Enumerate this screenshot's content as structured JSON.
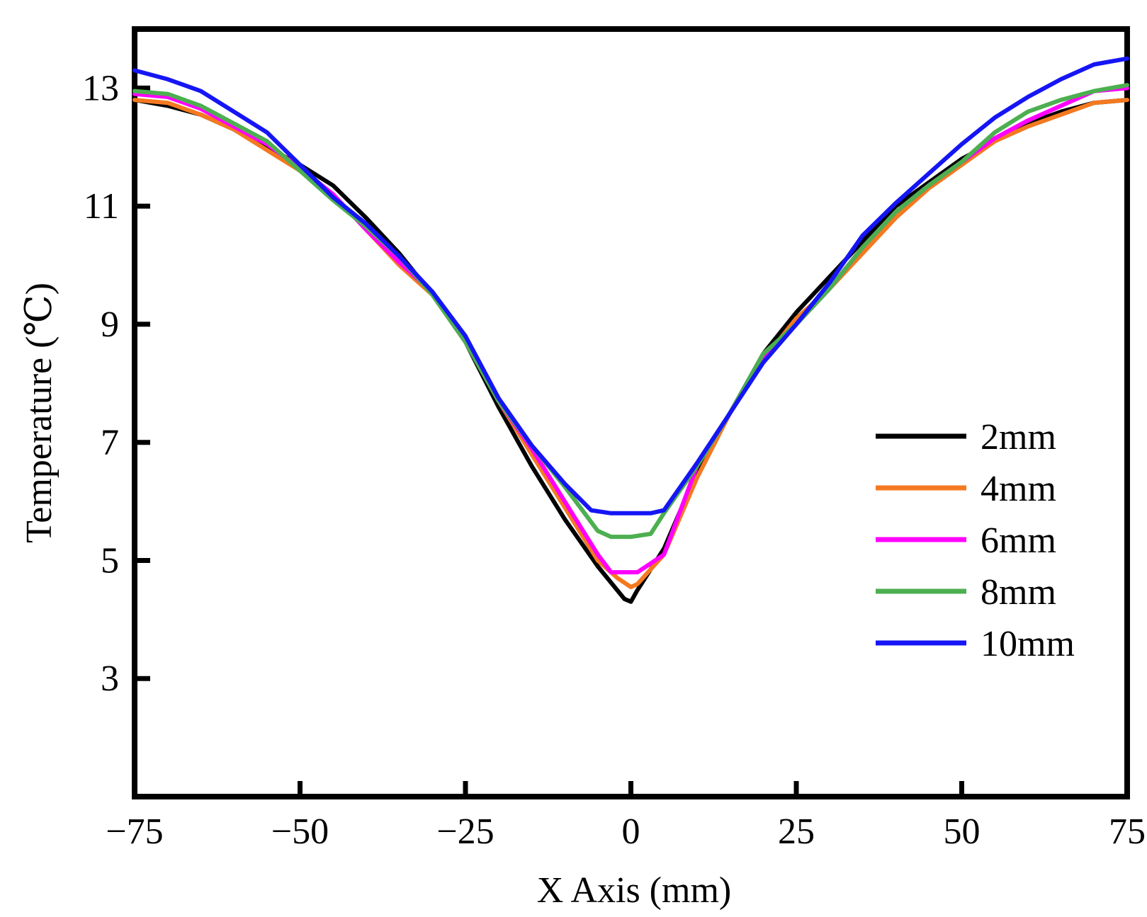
{
  "chart_data": {
    "type": "line",
    "title": "",
    "xlabel": "X Axis (mm)",
    "ylabel": "Temperature (℃)",
    "xlim": [
      -75,
      75
    ],
    "ylim": [
      1,
      14
    ],
    "xticks": [
      -75,
      -50,
      -25,
      0,
      25,
      50,
      75
    ],
    "xtick_labels": [
      "−75",
      "−50",
      "−25",
      "0",
      "25",
      "50",
      "75"
    ],
    "yticks": [
      3,
      5,
      7,
      9,
      11,
      13
    ],
    "ytick_labels": [
      "3",
      "5",
      "7",
      "9",
      "11",
      "13"
    ],
    "grid": false,
    "legend_position": "right",
    "series": [
      {
        "name": "2mm",
        "color": "#000000",
        "x": [
          -75,
          -70,
          -65,
          -60,
          -55,
          -50,
          -45,
          -40,
          -35,
          -30,
          -25,
          -20,
          -15,
          -10,
          -5,
          -1,
          0,
          1,
          5,
          10,
          15,
          20,
          25,
          30,
          35,
          40,
          45,
          50,
          55,
          60,
          65,
          70,
          75
        ],
        "values": [
          12.8,
          12.7,
          12.55,
          12.3,
          12.0,
          11.7,
          11.35,
          10.8,
          10.2,
          9.5,
          8.7,
          7.6,
          6.6,
          5.7,
          4.9,
          4.35,
          4.3,
          4.5,
          5.2,
          6.5,
          7.5,
          8.5,
          9.2,
          9.8,
          10.4,
          11.0,
          11.4,
          11.8,
          12.1,
          12.4,
          12.6,
          12.75,
          12.8
        ]
      },
      {
        "name": "4mm",
        "color": "#f47920",
        "x": [
          -75,
          -70,
          -65,
          -60,
          -55,
          -50,
          -45,
          -40,
          -35,
          -30,
          -25,
          -20,
          -15,
          -10,
          -5,
          -2,
          0,
          1,
          5,
          10,
          15,
          20,
          25,
          30,
          35,
          40,
          45,
          50,
          55,
          60,
          65,
          70,
          75
        ],
        "values": [
          12.8,
          12.75,
          12.55,
          12.3,
          11.95,
          11.6,
          11.2,
          10.6,
          10.0,
          9.5,
          8.7,
          7.7,
          6.8,
          5.9,
          5.0,
          4.7,
          4.55,
          4.6,
          5.1,
          6.4,
          7.5,
          8.4,
          9.1,
          9.6,
          10.2,
          10.8,
          11.3,
          11.7,
          12.1,
          12.35,
          12.55,
          12.75,
          12.8
        ]
      },
      {
        "name": "6mm",
        "color": "#ff00ff",
        "x": [
          -75,
          -70,
          -65,
          -60,
          -55,
          -50,
          -45,
          -40,
          -35,
          -30,
          -25,
          -20,
          -15,
          -10,
          -5,
          -3,
          0,
          1,
          5,
          10,
          15,
          20,
          25,
          30,
          35,
          40,
          45,
          50,
          55,
          60,
          65,
          70,
          75
        ],
        "values": [
          12.9,
          12.85,
          12.65,
          12.35,
          12.05,
          11.65,
          11.2,
          10.6,
          10.05,
          9.55,
          8.75,
          7.7,
          6.9,
          6.0,
          5.1,
          4.8,
          4.8,
          4.8,
          5.1,
          6.6,
          7.5,
          8.4,
          9.0,
          9.6,
          10.3,
          10.9,
          11.35,
          11.75,
          12.15,
          12.45,
          12.7,
          12.95,
          13.0
        ]
      },
      {
        "name": "8mm",
        "color": "#4caf50",
        "x": [
          -75,
          -70,
          -65,
          -60,
          -55,
          -50,
          -45,
          -40,
          -35,
          -30,
          -25,
          -20,
          -15,
          -10,
          -5,
          -3,
          0,
          3,
          5,
          10,
          15,
          20,
          25,
          30,
          35,
          40,
          45,
          50,
          55,
          60,
          65,
          70,
          75
        ],
        "values": [
          12.95,
          12.9,
          12.7,
          12.4,
          12.1,
          11.6,
          11.1,
          10.65,
          10.15,
          9.5,
          8.7,
          7.7,
          6.95,
          6.25,
          5.5,
          5.4,
          5.4,
          5.45,
          5.8,
          6.6,
          7.5,
          8.5,
          9.0,
          9.6,
          10.3,
          10.9,
          11.35,
          11.75,
          12.25,
          12.6,
          12.8,
          12.95,
          13.05
        ]
      },
      {
        "name": "10mm",
        "color": "#1515f5",
        "x": [
          -75,
          -70,
          -65,
          -60,
          -55,
          -50,
          -45,
          -40,
          -35,
          -30,
          -25,
          -20,
          -15,
          -10,
          -6,
          -3,
          0,
          3,
          5,
          10,
          15,
          20,
          25,
          30,
          35,
          40,
          45,
          50,
          55,
          60,
          65,
          70,
          75
        ],
        "values": [
          13.3,
          13.15,
          12.95,
          12.6,
          12.25,
          11.7,
          11.15,
          10.7,
          10.15,
          9.55,
          8.8,
          7.75,
          6.95,
          6.3,
          5.85,
          5.8,
          5.8,
          5.8,
          5.85,
          6.65,
          7.5,
          8.35,
          9.0,
          9.7,
          10.5,
          11.05,
          11.55,
          12.05,
          12.5,
          12.85,
          13.15,
          13.4,
          13.5
        ]
      }
    ]
  }
}
